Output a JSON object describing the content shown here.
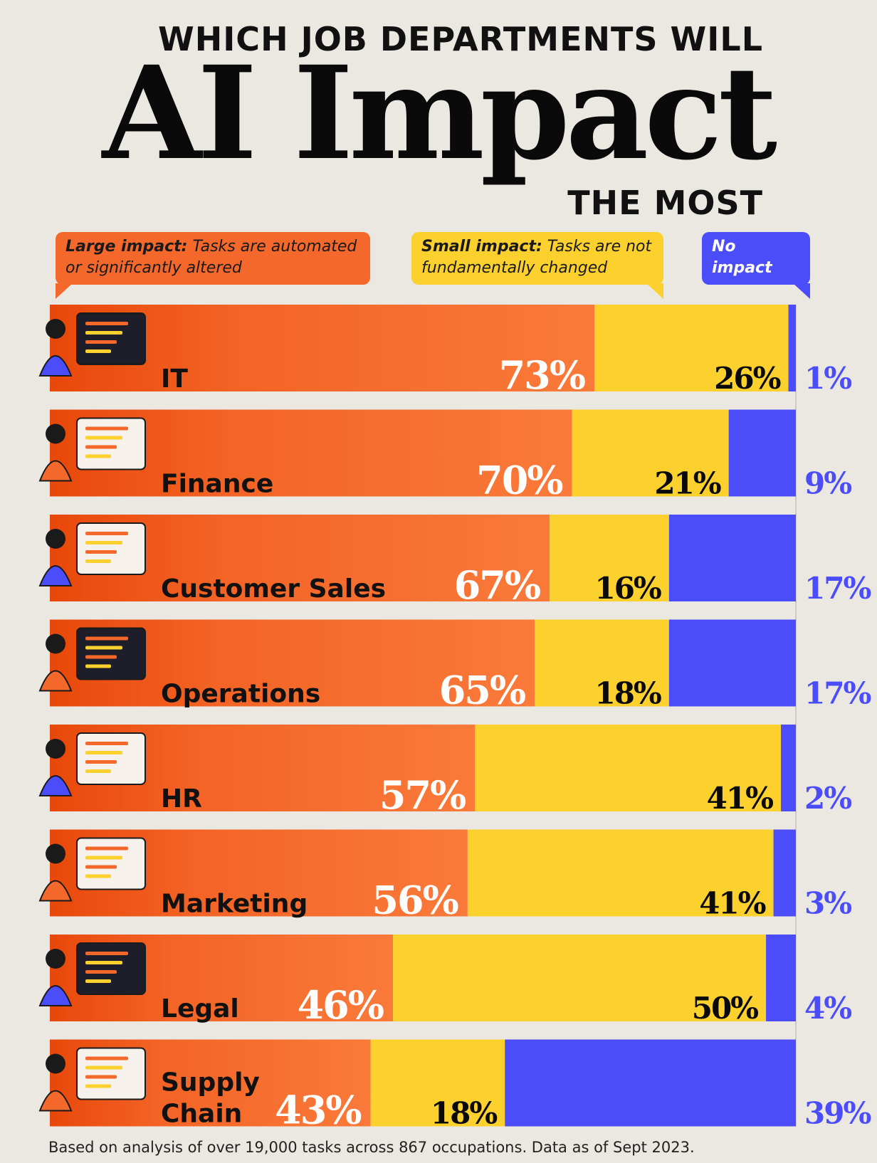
{
  "header": {
    "line1": "WHICH JOB DEPARTMENTS WILL",
    "main": "AI Impact",
    "line3": "THE MOST"
  },
  "legend": {
    "large": {
      "bold": "Large impact:",
      "text": " Tasks are automated or significantly altered"
    },
    "small": {
      "bold": "Small impact:",
      "text": " Tasks are not fundamentally changed"
    },
    "none": {
      "bold": "No impact",
      "text": ""
    }
  },
  "colors": {
    "large": "#f4682c",
    "large_dark": "#ea4f10",
    "small": "#fcd12d",
    "none": "#4b4dfb",
    "none_label": "#4b4dfb"
  },
  "chart_data": {
    "type": "bar",
    "orientation": "horizontal",
    "stacked": true,
    "categories": [
      "IT",
      "Finance",
      "Customer Sales",
      "Operations",
      "HR",
      "Marketing",
      "Legal",
      "Supply Chain"
    ],
    "series": [
      {
        "name": "Large impact",
        "values": [
          73,
          70,
          67,
          65,
          57,
          56,
          46,
          43
        ]
      },
      {
        "name": "Small impact",
        "values": [
          26,
          21,
          16,
          18,
          41,
          41,
          50,
          18
        ]
      },
      {
        "name": "No impact",
        "values": [
          1,
          9,
          17,
          17,
          2,
          3,
          4,
          39
        ]
      }
    ],
    "labels": {
      "large": [
        "73%",
        "70%",
        "67%",
        "65%",
        "57%",
        "56%",
        "46%",
        "43%"
      ],
      "small": [
        "26%",
        "21%",
        "16%",
        "18%",
        "41%",
        "41%",
        "50%",
        "18%"
      ],
      "none": [
        "1%",
        "9%",
        "17%",
        "17%",
        "2%",
        "3%",
        "4%",
        "39%"
      ]
    },
    "category_lines": [
      [
        "IT"
      ],
      [
        "Finance"
      ],
      [
        "Customer Sales"
      ],
      [
        "Operations"
      ],
      [
        "HR"
      ],
      [
        "Marketing"
      ],
      [
        "Legal"
      ],
      [
        "Supply",
        "Chain"
      ]
    ],
    "icons": [
      "developer-icon",
      "finance-calculator-icon",
      "sales-box-icon",
      "operations-calendar-icon",
      "hr-video-call-icon",
      "marketing-screen-icon",
      "legal-scale-icon",
      "supply-chain-map-icon"
    ],
    "xlim": [
      0,
      100
    ]
  },
  "footnote": "Based on analysis of over 19,000 tasks across 867 occupations. Data as of Sept 2023."
}
